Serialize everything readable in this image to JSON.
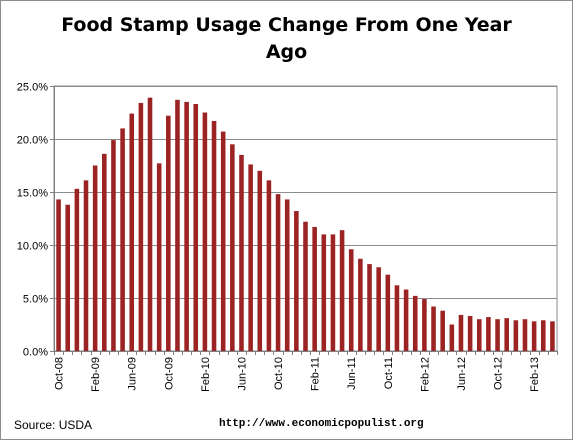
{
  "chart_data": {
    "type": "bar",
    "title": "Food Stamp Usage Change From One Year\nAgo",
    "xlabel": "",
    "ylabel": "",
    "ylim": [
      0,
      0.25
    ],
    "yticks": [
      0,
      0.05,
      0.1,
      0.15,
      0.2,
      0.25
    ],
    "ytick_labels": [
      "0.0%",
      "5.0%",
      "10.0%",
      "15.0%",
      "20.0%",
      "25.0%"
    ],
    "grid": "horizontal",
    "legend": "none",
    "bar_color": "#9b2323",
    "categories": [
      "Oct-08",
      "Nov-08",
      "Dec-08",
      "Jan-09",
      "Feb-09",
      "Mar-09",
      "Apr-09",
      "May-09",
      "Jun-09",
      "Jul-09",
      "Aug-09",
      "Sep-09",
      "Oct-09",
      "Nov-09",
      "Dec-09",
      "Jan-10",
      "Feb-10",
      "Mar-10",
      "Apr-10",
      "May-10",
      "Jun-10",
      "Jul-10",
      "Aug-10",
      "Sep-10",
      "Oct-10",
      "Nov-10",
      "Dec-10",
      "Jan-11",
      "Feb-11",
      "Mar-11",
      "Apr-11",
      "May-11",
      "Jun-11",
      "Jul-11",
      "Aug-11",
      "Sep-11",
      "Oct-11",
      "Nov-11",
      "Dec-11",
      "Jan-12",
      "Feb-12",
      "Mar-12",
      "Apr-12",
      "May-12",
      "Jun-12",
      "Jul-12",
      "Aug-12",
      "Sep-12",
      "Oct-12",
      "Nov-12",
      "Dec-12",
      "Jan-13",
      "Feb-13",
      "Mar-13",
      "Apr-13"
    ],
    "x_tick_labels": [
      "Oct-08",
      "Feb-09",
      "Jun-09",
      "Oct-09",
      "Feb-10",
      "Jun-10",
      "Oct-10",
      "Feb-11",
      "Jun-11",
      "Oct-11",
      "Feb-12",
      "Jun-12",
      "Oct-12",
      "Feb-13"
    ],
    "values": [
      0.143,
      0.138,
      0.153,
      0.161,
      0.175,
      0.186,
      0.199,
      0.21,
      0.224,
      0.234,
      0.239,
      0.177,
      0.222,
      0.237,
      0.235,
      0.233,
      0.225,
      0.217,
      0.207,
      0.195,
      0.185,
      0.176,
      0.17,
      0.161,
      0.148,
      0.143,
      0.132,
      0.122,
      0.117,
      0.11,
      0.11,
      0.114,
      0.096,
      0.087,
      0.082,
      0.079,
      0.072,
      0.062,
      0.058,
      0.052,
      0.049,
      0.042,
      0.038,
      0.025,
      0.034,
      0.033,
      0.03,
      0.032,
      0.03,
      0.031,
      0.029,
      0.03,
      0.028,
      0.029,
      0.028
    ]
  },
  "footer": {
    "source": "Source:  USDA",
    "url": "http://www.economicpopulist.org"
  }
}
